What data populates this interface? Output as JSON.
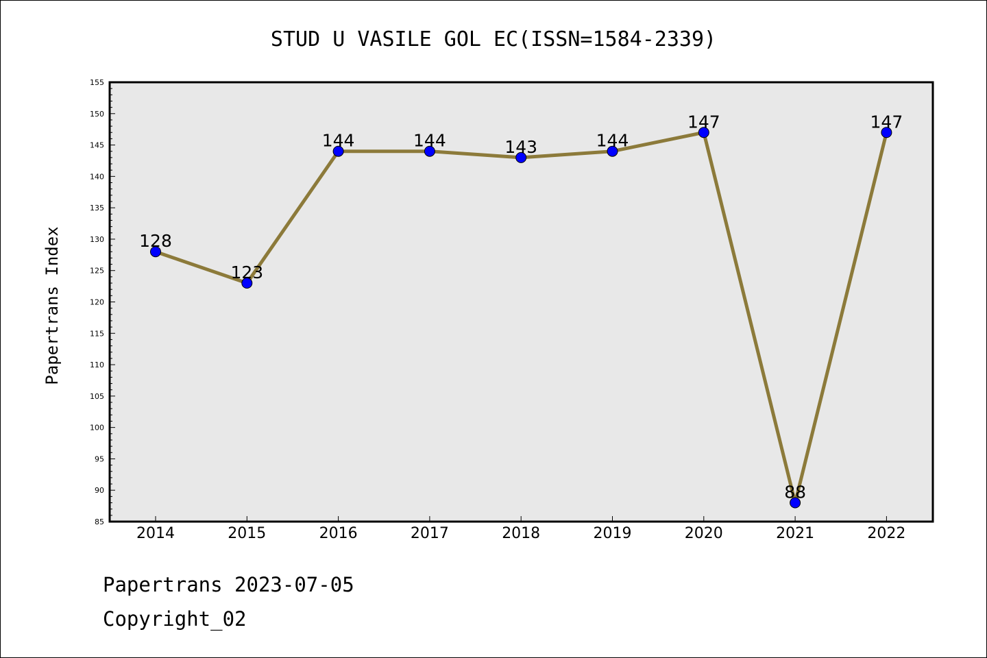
{
  "chart_data": {
    "type": "line",
    "title": "STUD U VASILE GOL EC(ISSN=1584-2339)",
    "xlabel": "",
    "ylabel": "Papertrans Index",
    "x": [
      "2014",
      "2015",
      "2016",
      "2017",
      "2018",
      "2019",
      "2020",
      "2021",
      "2022"
    ],
    "series": [
      {
        "values": [
          128,
          123,
          144,
          144,
          143,
          144,
          147,
          88,
          147
        ]
      }
    ],
    "data_labels": [
      "128",
      "123",
      "144",
      "144",
      "143",
      "144",
      "147",
      "88",
      "147"
    ],
    "ylim": [
      85,
      155
    ],
    "yticks": [
      "85",
      "90",
      "95",
      "100",
      "105",
      "110",
      "115",
      "120",
      "125",
      "130",
      "135",
      "140",
      "145",
      "150",
      "155"
    ],
    "grid": false,
    "legend": "none",
    "colors": {
      "line": "#8c7a3a",
      "marker": "#0000ff",
      "plot_background": "#e8e8e8"
    }
  },
  "footer": {
    "date_line": "Papertrans 2023-07-05",
    "copyright_line": "Copyright_02"
  }
}
